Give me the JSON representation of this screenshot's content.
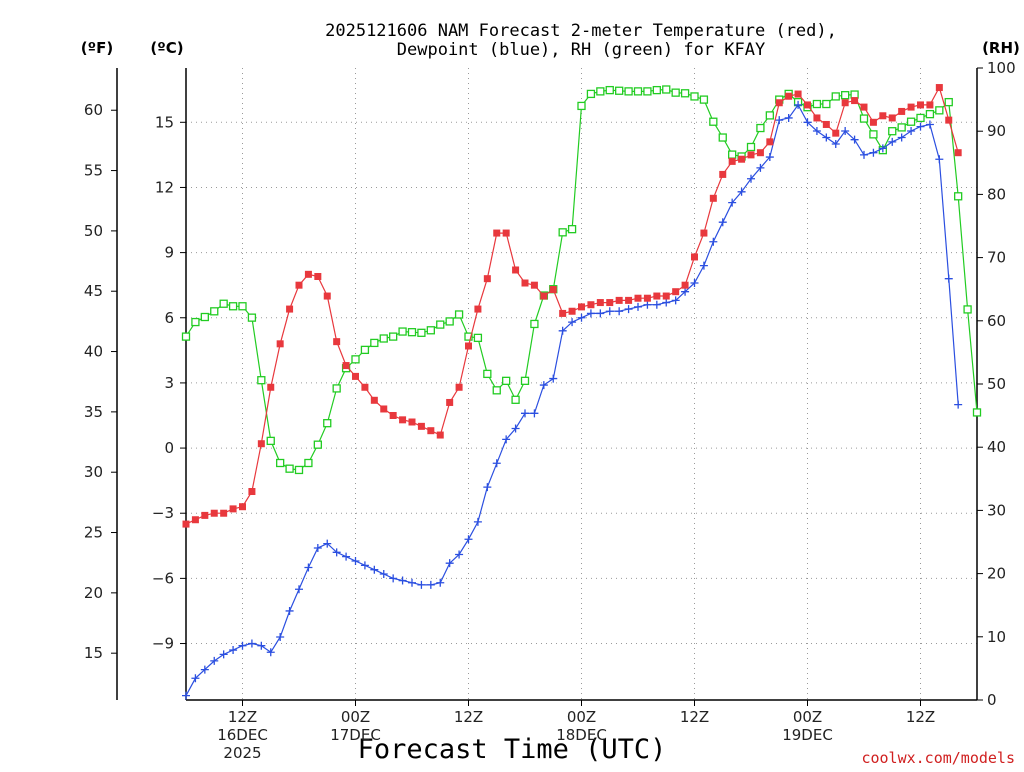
{
  "title": {
    "line1": "2025121606 NAM Forecast 2-meter Temperature (red),",
    "line2": "Dewpoint (blue), RH (green) for KFAY"
  },
  "units": {
    "fahrenheit": "(ºF)",
    "celsius": "(ºC)",
    "rh": "(RH)"
  },
  "credit": "coolwx.com/models",
  "chart_data": {
    "type": "line",
    "title": "2025121606 NAM Forecast 2-meter Temperature (red), Dewpoint (blue), RH (green) for KFAY",
    "xlabel": "Forecast Time (UTC)",
    "x_unit": "hours since 2025-12-16 06Z",
    "xlim": [
      0,
      84
    ],
    "ylim_celsius": [
      -11.6,
      17.5
    ],
    "ylim_rh": [
      0,
      100
    ],
    "left_axis_fahrenheit_ticks": [
      "15",
      "20",
      "25",
      "30",
      "35",
      "40",
      "45",
      "50",
      "55",
      "60"
    ],
    "left_axis_celsius_ticks": [
      "-9",
      "-6",
      "-3",
      "0",
      "3",
      "6",
      "9",
      "12",
      "15"
    ],
    "right_axis_rh_ticks": [
      "0",
      "10",
      "20",
      "30",
      "40",
      "50",
      "60",
      "70",
      "80",
      "90",
      "100"
    ],
    "x_tick_labels": [
      {
        "x": 6,
        "line1": "12Z",
        "line2": "16DEC",
        "line3": "2025"
      },
      {
        "x": 18,
        "line1": "00Z",
        "line2": "17DEC",
        "line3": ""
      },
      {
        "x": 30,
        "line1": "12Z",
        "line2": "",
        "line3": ""
      },
      {
        "x": 42,
        "line1": "00Z",
        "line2": "18DEC",
        "line3": ""
      },
      {
        "x": 54,
        "line1": "12Z",
        "line2": "",
        "line3": ""
      },
      {
        "x": 66,
        "line1": "00Z",
        "line2": "19DEC",
        "line3": ""
      },
      {
        "x": 78,
        "line1": "12Z",
        "line2": "",
        "line3": ""
      }
    ],
    "grid": true,
    "series": [
      {
        "name": "Temperature",
        "axis": "celsius",
        "color": "#e8383d",
        "marker": "filled-square",
        "points": [
          [
            0,
            -3.5
          ],
          [
            1,
            -3.3
          ],
          [
            2,
            -3.1
          ],
          [
            3,
            -3.0
          ],
          [
            4,
            -3.0
          ],
          [
            5,
            -2.8
          ],
          [
            6,
            -2.7
          ],
          [
            7,
            -2.0
          ],
          [
            8,
            0.2
          ],
          [
            9,
            2.8
          ],
          [
            10,
            4.8
          ],
          [
            11,
            6.4
          ],
          [
            12,
            7.5
          ],
          [
            13,
            8.0
          ],
          [
            14,
            7.9
          ],
          [
            15,
            7.0
          ],
          [
            16,
            4.9
          ],
          [
            17,
            3.8
          ],
          [
            18,
            3.3
          ],
          [
            19,
            2.8
          ],
          [
            20,
            2.2
          ],
          [
            21,
            1.8
          ],
          [
            22,
            1.5
          ],
          [
            23,
            1.3
          ],
          [
            24,
            1.2
          ],
          [
            25,
            1.0
          ],
          [
            26,
            0.8
          ],
          [
            27,
            0.6
          ],
          [
            28,
            2.1
          ],
          [
            29,
            2.8
          ],
          [
            30,
            4.7
          ],
          [
            31,
            6.4
          ],
          [
            32,
            7.8
          ],
          [
            33,
            9.9
          ],
          [
            34,
            9.9
          ],
          [
            35,
            8.2
          ],
          [
            36,
            7.6
          ],
          [
            37,
            7.5
          ],
          [
            38,
            7.0
          ],
          [
            39,
            7.3
          ],
          [
            40,
            6.2
          ],
          [
            41,
            6.3
          ],
          [
            42,
            6.5
          ],
          [
            43,
            6.6
          ],
          [
            44,
            6.7
          ],
          [
            45,
            6.7
          ],
          [
            46,
            6.8
          ],
          [
            47,
            6.8
          ],
          [
            48,
            6.9
          ],
          [
            49,
            6.9
          ],
          [
            50,
            7.0
          ],
          [
            51,
            7.0
          ],
          [
            52,
            7.2
          ],
          [
            53,
            7.5
          ],
          [
            54,
            8.8
          ],
          [
            55,
            9.9
          ],
          [
            56,
            11.5
          ],
          [
            57,
            12.6
          ],
          [
            58,
            13.2
          ],
          [
            59,
            13.3
          ],
          [
            60,
            13.5
          ],
          [
            61,
            13.6
          ],
          [
            62,
            14.1
          ],
          [
            63,
            15.9
          ],
          [
            64,
            16.2
          ],
          [
            65,
            16.3
          ],
          [
            66,
            15.8
          ],
          [
            67,
            15.2
          ],
          [
            68,
            14.9
          ],
          [
            69,
            14.5
          ],
          [
            70,
            15.9
          ],
          [
            71,
            16.0
          ],
          [
            72,
            15.7
          ],
          [
            73,
            15.0
          ],
          [
            74,
            15.3
          ],
          [
            75,
            15.2
          ],
          [
            76,
            15.5
          ],
          [
            77,
            15.7
          ],
          [
            78,
            15.8
          ],
          [
            79,
            15.8
          ],
          [
            80,
            16.6
          ],
          [
            81,
            15.1
          ],
          [
            82,
            13.6
          ]
        ]
      },
      {
        "name": "Dewpoint",
        "axis": "celsius",
        "color": "#2b4fe0",
        "marker": "plus",
        "points": [
          [
            0,
            -11.4
          ],
          [
            1,
            -10.6
          ],
          [
            2,
            -10.2
          ],
          [
            3,
            -9.8
          ],
          [
            4,
            -9.5
          ],
          [
            5,
            -9.3
          ],
          [
            6,
            -9.1
          ],
          [
            7,
            -9.0
          ],
          [
            8,
            -9.1
          ],
          [
            9,
            -9.4
          ],
          [
            10,
            -8.7
          ],
          [
            11,
            -7.5
          ],
          [
            12,
            -6.5
          ],
          [
            13,
            -5.5
          ],
          [
            14,
            -4.6
          ],
          [
            15,
            -4.4
          ],
          [
            16,
            -4.8
          ],
          [
            17,
            -5.0
          ],
          [
            18,
            -5.2
          ],
          [
            19,
            -5.4
          ],
          [
            20,
            -5.6
          ],
          [
            21,
            -5.8
          ],
          [
            22,
            -6.0
          ],
          [
            23,
            -6.1
          ],
          [
            24,
            -6.2
          ],
          [
            25,
            -6.3
          ],
          [
            26,
            -6.3
          ],
          [
            27,
            -6.2
          ],
          [
            28,
            -5.3
          ],
          [
            29,
            -4.9
          ],
          [
            30,
            -4.2
          ],
          [
            31,
            -3.4
          ],
          [
            32,
            -1.8
          ],
          [
            33,
            -0.7
          ],
          [
            34,
            0.4
          ],
          [
            35,
            0.9
          ],
          [
            36,
            1.6
          ],
          [
            37,
            1.6
          ],
          [
            38,
            2.9
          ],
          [
            39,
            3.2
          ],
          [
            40,
            5.4
          ],
          [
            41,
            5.8
          ],
          [
            42,
            6.0
          ],
          [
            43,
            6.2
          ],
          [
            44,
            6.2
          ],
          [
            45,
            6.3
          ],
          [
            46,
            6.3
          ],
          [
            47,
            6.4
          ],
          [
            48,
            6.5
          ],
          [
            49,
            6.6
          ],
          [
            50,
            6.6
          ],
          [
            51,
            6.7
          ],
          [
            52,
            6.8
          ],
          [
            53,
            7.2
          ],
          [
            54,
            7.6
          ],
          [
            55,
            8.4
          ],
          [
            56,
            9.5
          ],
          [
            57,
            10.4
          ],
          [
            58,
            11.3
          ],
          [
            59,
            11.8
          ],
          [
            60,
            12.4
          ],
          [
            61,
            12.9
          ],
          [
            62,
            13.4
          ],
          [
            63,
            15.1
          ],
          [
            64,
            15.2
          ],
          [
            65,
            15.8
          ],
          [
            66,
            15.0
          ],
          [
            67,
            14.6
          ],
          [
            68,
            14.3
          ],
          [
            69,
            14.0
          ],
          [
            70,
            14.6
          ],
          [
            71,
            14.2
          ],
          [
            72,
            13.5
          ],
          [
            73,
            13.6
          ],
          [
            74,
            13.8
          ],
          [
            75,
            14.1
          ],
          [
            76,
            14.3
          ],
          [
            77,
            14.6
          ],
          [
            78,
            14.8
          ],
          [
            79,
            14.9
          ],
          [
            80,
            13.3
          ],
          [
            81,
            7.8
          ],
          [
            82,
            2.0
          ]
        ]
      },
      {
        "name": "RH",
        "axis": "rh",
        "color": "#22cc22",
        "marker": "open-square",
        "points": [
          [
            0,
            57.5
          ],
          [
            1,
            59.8
          ],
          [
            2,
            60.6
          ],
          [
            3,
            61.5
          ],
          [
            4,
            62.7
          ],
          [
            5,
            62.3
          ],
          [
            6,
            62.3
          ],
          [
            7,
            60.5
          ],
          [
            8,
            50.6
          ],
          [
            9,
            41.0
          ],
          [
            10,
            37.5
          ],
          [
            11,
            36.6
          ],
          [
            12,
            36.4
          ],
          [
            13,
            37.5
          ],
          [
            14,
            40.4
          ],
          [
            15,
            43.8
          ],
          [
            16,
            49.3
          ],
          [
            17,
            52.5
          ],
          [
            18,
            53.9
          ],
          [
            19,
            55.4
          ],
          [
            20,
            56.5
          ],
          [
            21,
            57.2
          ],
          [
            22,
            57.5
          ],
          [
            23,
            58.3
          ],
          [
            24,
            58.2
          ],
          [
            25,
            58.1
          ],
          [
            26,
            58.5
          ],
          [
            27,
            59.4
          ],
          [
            28,
            59.9
          ],
          [
            29,
            61.0
          ],
          [
            30,
            57.5
          ],
          [
            31,
            57.3
          ],
          [
            32,
            51.6
          ],
          [
            33,
            49.0
          ],
          [
            34,
            50.5
          ],
          [
            35,
            47.5
          ],
          [
            36,
            50.5
          ],
          [
            37,
            59.5
          ],
          [
            38,
            64.0
          ],
          [
            39,
            65.0
          ],
          [
            40,
            74.0
          ],
          [
            41,
            74.5
          ],
          [
            42,
            94.0
          ],
          [
            43,
            95.9
          ],
          [
            44,
            96.3
          ],
          [
            45,
            96.5
          ],
          [
            46,
            96.4
          ],
          [
            47,
            96.3
          ],
          [
            48,
            96.3
          ],
          [
            49,
            96.3
          ],
          [
            50,
            96.5
          ],
          [
            51,
            96.6
          ],
          [
            52,
            96.1
          ],
          [
            53,
            96.0
          ],
          [
            54,
            95.5
          ],
          [
            55,
            95.0
          ],
          [
            56,
            91.5
          ],
          [
            57,
            89.0
          ],
          [
            58,
            86.3
          ],
          [
            59,
            86.0
          ],
          [
            60,
            87.5
          ],
          [
            61,
            90.5
          ],
          [
            62,
            92.5
          ],
          [
            63,
            95.0
          ],
          [
            64,
            95.9
          ],
          [
            65,
            94.6
          ],
          [
            66,
            93.8
          ],
          [
            67,
            94.3
          ],
          [
            68,
            94.3
          ],
          [
            69,
            95.5
          ],
          [
            70,
            95.7
          ],
          [
            71,
            95.8
          ],
          [
            72,
            92.0
          ],
          [
            73,
            89.5
          ],
          [
            74,
            87.0
          ],
          [
            75,
            90.0
          ],
          [
            76,
            90.6
          ],
          [
            77,
            91.5
          ],
          [
            78,
            92.1
          ],
          [
            79,
            92.7
          ],
          [
            80,
            93.3
          ],
          [
            81,
            94.6
          ],
          [
            82,
            79.7
          ],
          [
            83,
            61.8
          ],
          [
            84,
            45.5
          ]
        ]
      }
    ]
  }
}
